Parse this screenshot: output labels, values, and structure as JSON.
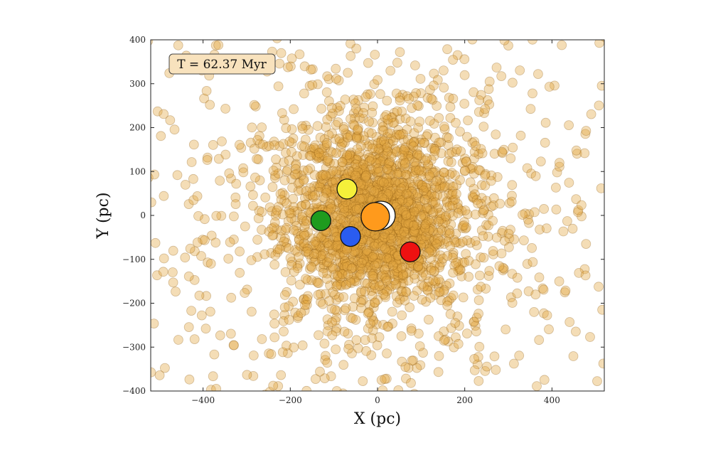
{
  "chart_data": {
    "type": "scatter",
    "title": "",
    "xlabel": "X (pc)",
    "ylabel": "Y (pc)",
    "xlim": [
      -520,
      520
    ],
    "ylim": [
      -400,
      400
    ],
    "xticks": [
      -400,
      -200,
      0,
      200,
      400
    ],
    "yticks": [
      400,
      300,
      200,
      100,
      0,
      -100,
      -200,
      -300,
      -400
    ],
    "xtick_labels": [
      "−400",
      "−200",
      "0",
      "200",
      "400"
    ],
    "ytick_labels": [
      "400",
      "300",
      "200",
      "100",
      "0",
      "−100",
      "−200",
      "−300",
      "−400"
    ],
    "grid": false,
    "annotation": "T = 62.37 Myr",
    "annotation_box": {
      "fill": "#f8e2bd",
      "stroke": "#444444"
    },
    "field": {
      "color": "#e3a640",
      "stroke": "#8a5a10",
      "opacity": 0.38,
      "count": 2600,
      "description_sigma_pc": 120
    },
    "series": [
      {
        "color": "#1e9b1e",
        "points": [
          [
            -130,
            -12
          ]
        ],
        "size": "large"
      },
      {
        "color": "#f5f03a",
        "points": [
          [
            -70,
            60
          ]
        ],
        "size": "large"
      },
      {
        "color": "#2a5cf0",
        "points": [
          [
            -62,
            -48
          ]
        ],
        "size": "large"
      },
      {
        "color": "#ffffff",
        "points": [
          [
            8,
            0
          ]
        ],
        "size": "xlarge"
      },
      {
        "color": "#ff9a1c",
        "points": [
          [
            -5,
            -3
          ]
        ],
        "size": "xlarge"
      },
      {
        "color": "#ee1111",
        "points": [
          [
            75,
            -83
          ]
        ],
        "size": "large"
      }
    ]
  }
}
